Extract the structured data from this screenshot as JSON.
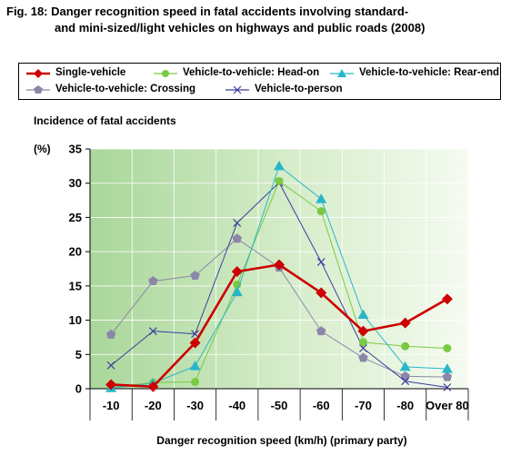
{
  "title": {
    "line1": "Fig. 18: Danger recognition speed in fatal accidents involving standard-",
    "line2": "and mini-sized/light vehicles on highways and public roads (2008)"
  },
  "chart_data": {
    "type": "line",
    "ylabel": "Incidence of fatal accidents",
    "yunit": "(%)",
    "xlabel": "Danger recognition speed (km/h) (primary party)",
    "ylim": [
      0,
      35
    ],
    "yticks": [
      "0",
      "5",
      "10",
      "15",
      "20",
      "25",
      "30",
      "35"
    ],
    "categories": [
      "-10",
      "-20",
      "-30",
      "-40",
      "-50",
      "-60",
      "-70",
      "-80",
      "Over 80"
    ],
    "legend_position": "top",
    "series": [
      {
        "name": "Single-vehicle",
        "color": "#cc0000",
        "marker": "diamond",
        "values": [
          0.6,
          0.3,
          6.7,
          17.1,
          18.1,
          14.0,
          8.4,
          9.6,
          13.1
        ]
      },
      {
        "name": "Vehicle-to-vehicle: Head-on",
        "color": "#7ac943",
        "marker": "circle",
        "values": [
          0.2,
          0.9,
          1.0,
          15.2,
          30.3,
          25.9,
          6.8,
          6.2,
          5.9
        ]
      },
      {
        "name": "Vehicle-to-vehicle: Rear-end",
        "color": "#29b6c8",
        "marker": "triangle",
        "values": [
          0.1,
          0.8,
          3.3,
          14.1,
          32.5,
          27.7,
          10.8,
          3.2,
          2.9
        ]
      },
      {
        "name": "Vehicle-to-vehicle: Crossing",
        "color": "#8c86a8",
        "marker": "pentagon",
        "values": [
          7.9,
          15.7,
          16.5,
          21.9,
          17.7,
          8.4,
          4.5,
          1.8,
          1.7
        ]
      },
      {
        "name": "Vehicle-to-person",
        "color": "#3d3d9e",
        "marker": "x",
        "values": [
          3.4,
          8.4,
          8.0,
          24.2,
          30.1,
          18.5,
          5.9,
          1.1,
          0.2
        ]
      }
    ]
  }
}
